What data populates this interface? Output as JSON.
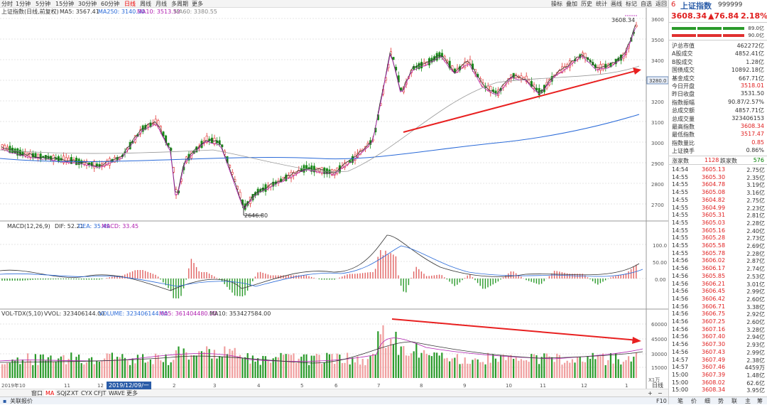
{
  "toolbar": {
    "periods": [
      "分时",
      "1分钟",
      "5分钟",
      "15分钟",
      "30分钟",
      "60分钟",
      "日线",
      "周线",
      "月线",
      "多周期",
      "更多"
    ],
    "active_period": "日线",
    "buttons": [
      "操标",
      "叠加",
      "历史",
      "统计",
      "画线",
      "标记",
      "自选",
      "返回"
    ]
  },
  "chart_header": {
    "title": "上证指数(日线,前复权)",
    "ma5": "MA5: 3567.41",
    "ma250": "MA250: 3140.30",
    "ma10": "MA10: 3513.52",
    "ma60": "MA60: 3380.55",
    "high_label": "3608.34",
    "low_label": "2646.80",
    "price_tag": "3280.0"
  },
  "macd_header": {
    "name": "MACD(12,26,9)",
    "dif": "DIF: 52.21",
    "dea": "DEA: 35.49",
    "macd": "MACD: 33.45"
  },
  "vol_header": {
    "name": "VOL-TDX(5,10)",
    "vvol": "VVOL: 323406144.00",
    "volume": "VOLUME: 323406144.00",
    "ma5": "MA5: 361404480.00",
    "ma10": "MA10: 353427584.00"
  },
  "price_axis": [
    "3600",
    "3500",
    "3400",
    "3300",
    "3200",
    "3100",
    "3000",
    "2900",
    "2800",
    "2700"
  ],
  "macd_axis": [
    "100.0",
    "50.00",
    "0.00"
  ],
  "vol_axis": [
    "60000",
    "45000",
    "30000",
    "15000"
  ],
  "vol_unit": "X1万",
  "x_axis_labels": [
    "2019年10",
    "11",
    "12",
    "2019/12/09/一",
    "2",
    "3",
    "4",
    "5",
    "6",
    "7",
    "8",
    "9",
    "10",
    "11",
    "12",
    "1"
  ],
  "bottom_tabs": [
    "窗口",
    "MA",
    "SQJZ",
    "XT",
    "CYX",
    "CFJT",
    "WAVE",
    "更多"
  ],
  "bottom_right": "日线",
  "status": {
    "left": "关联报价",
    "f10": "F10"
  },
  "sidebar": {
    "code_prefix": "6",
    "name": "上证指数",
    "code": "999999",
    "price": "3608.34",
    "change": "▲76.84",
    "pct": "2.18%",
    "bar_labels": [
      "89.0亿",
      "90.0亿"
    ],
    "stats": [
      {
        "label": "沪总市值",
        "value": "462272亿",
        "cls": ""
      },
      {
        "label": "A股成交",
        "value": "4852.41亿",
        "cls": ""
      },
      {
        "label": "B股成交",
        "value": "1.28亿",
        "cls": ""
      },
      {
        "label": "国债成交",
        "value": "10892.18亿",
        "cls": ""
      },
      {
        "label": "基金成交",
        "value": "667.71亿",
        "cls": ""
      },
      {
        "label": "今日开盘",
        "value": "3518.01",
        "cls": "red"
      },
      {
        "label": "昨日收盘",
        "value": "3531.50",
        "cls": ""
      },
      {
        "label": "指数振幅",
        "value": "90.87/2.57%",
        "cls": ""
      },
      {
        "label": "总成交额",
        "value": "4857.71亿",
        "cls": ""
      },
      {
        "label": "总成交量",
        "value": "323406153",
        "cls": ""
      },
      {
        "label": "最高指数",
        "value": "3608.34",
        "cls": "red"
      },
      {
        "label": "最低指数",
        "value": "3517.47",
        "cls": "red"
      },
      {
        "label": "指数量比",
        "value": "0.85",
        "cls": "red"
      },
      {
        "label": "上证换手",
        "value": "0.86%",
        "cls": ""
      }
    ],
    "up_label": "涨家数",
    "up_count": "1128",
    "down_label": "跌家数",
    "down_count": "576",
    "ticks": [
      [
        "14:54",
        "3605.13",
        "2.75亿"
      ],
      [
        "14:55",
        "3605.30",
        "2.35亿"
      ],
      [
        "14:55",
        "3604.78",
        "3.19亿"
      ],
      [
        "14:55",
        "3605.08",
        "3.16亿"
      ],
      [
        "14:55",
        "3604.82",
        "2.75亿"
      ],
      [
        "14:55",
        "3604.99",
        "2.23亿"
      ],
      [
        "14:55",
        "3605.31",
        "2.81亿"
      ],
      [
        "14:55",
        "3605.03",
        "2.28亿"
      ],
      [
        "14:55",
        "3605.16",
        "2.40亿"
      ],
      [
        "14:55",
        "3605.28",
        "2.73亿"
      ],
      [
        "14:55",
        "3605.58",
        "2.69亿"
      ],
      [
        "14:55",
        "3605.78",
        "2.28亿"
      ],
      [
        "14:56",
        "3606.02",
        "2.87亿"
      ],
      [
        "14:56",
        "3606.17",
        "2.74亿"
      ],
      [
        "14:56",
        "3605.85",
        "2.53亿"
      ],
      [
        "14:56",
        "3606.21",
        "3.01亿"
      ],
      [
        "14:56",
        "3606.45",
        "2.99亿"
      ],
      [
        "14:56",
        "3606.42",
        "2.60亿"
      ],
      [
        "14:56",
        "3606.71",
        "3.38亿"
      ],
      [
        "14:56",
        "3606.75",
        "2.92亿"
      ],
      [
        "14:56",
        "3607.25",
        "2.60亿"
      ],
      [
        "14:56",
        "3607.16",
        "3.28亿"
      ],
      [
        "14:56",
        "3607.40",
        "2.94亿"
      ],
      [
        "14:56",
        "3607.30",
        "2.93亿"
      ],
      [
        "14:56",
        "3607.43",
        "2.99亿"
      ],
      [
        "14:57",
        "3607.49",
        "2.38亿"
      ],
      [
        "14:57",
        "3607.46",
        "4459万"
      ],
      [
        "15:00",
        "3607.39",
        "1.48亿"
      ],
      [
        "15:00",
        "3608.02",
        "62.6亿"
      ],
      [
        "15:00",
        "3608.34",
        "3.95亿"
      ]
    ],
    "tabs": [
      "笔",
      "价",
      "细",
      "势",
      "联",
      "主",
      "筹"
    ]
  }
}
